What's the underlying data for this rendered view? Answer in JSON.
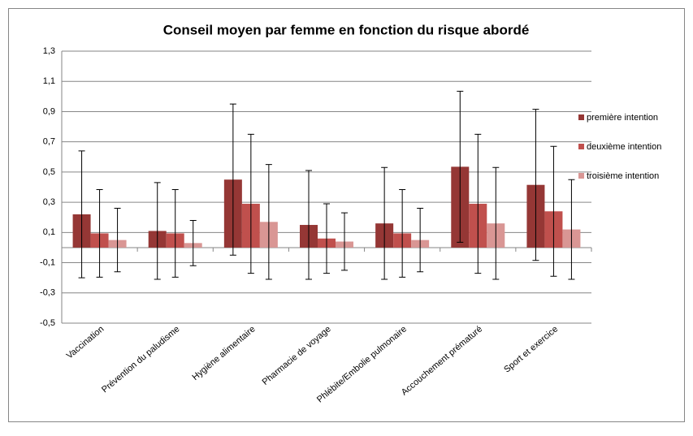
{
  "chart_data": {
    "type": "bar",
    "title": "Conseil moyen par femme en fonction du risque abordé",
    "categories": [
      "Vaccination",
      "Prévention du paludisme",
      "Hygiène alimentaire",
      "Pharmacie de voyage",
      "Phlébite/Embolie pulmonaire",
      "Accouchement prématuré",
      "Sport et exercice"
    ],
    "series": [
      {
        "name": "première intention",
        "color": "#953735",
        "values": [
          0.22,
          0.11,
          0.45,
          0.15,
          0.16,
          0.535,
          0.415
        ],
        "errors": [
          0.42,
          0.32,
          0.5,
          0.36,
          0.37,
          0.5,
          0.5
        ]
      },
      {
        "name": "deuxième intention",
        "color": "#c0504d",
        "values": [
          0.094,
          0.094,
          0.29,
          0.06,
          0.094,
          0.29,
          0.24
        ],
        "errors": [
          0.29,
          0.29,
          0.46,
          0.23,
          0.29,
          0.46,
          0.43
        ]
      },
      {
        "name": "troisième intention",
        "color": "#d99694",
        "values": [
          0.05,
          0.03,
          0.17,
          0.04,
          0.05,
          0.16,
          0.12
        ],
        "errors": [
          0.21,
          0.15,
          0.38,
          0.19,
          0.21,
          0.37,
          0.33
        ]
      }
    ],
    "ylim": [
      -0.5,
      1.3
    ],
    "yticks": [
      {
        "value": -0.5,
        "label": "-0,5"
      },
      {
        "value": -0.3,
        "label": "-0,3"
      },
      {
        "value": -0.1,
        "label": "-0,1"
      },
      {
        "value": 0.1,
        "label": "0,1"
      },
      {
        "value": 0.3,
        "label": "0,3"
      },
      {
        "value": 0.5,
        "label": "0,5"
      },
      {
        "value": 0.7,
        "label": "0,7"
      },
      {
        "value": 0.9,
        "label": "0,9"
      },
      {
        "value": 1.1,
        "label": "1,1"
      },
      {
        "value": 1.3,
        "label": "1,3"
      }
    ],
    "grid": true,
    "legend": "right"
  }
}
